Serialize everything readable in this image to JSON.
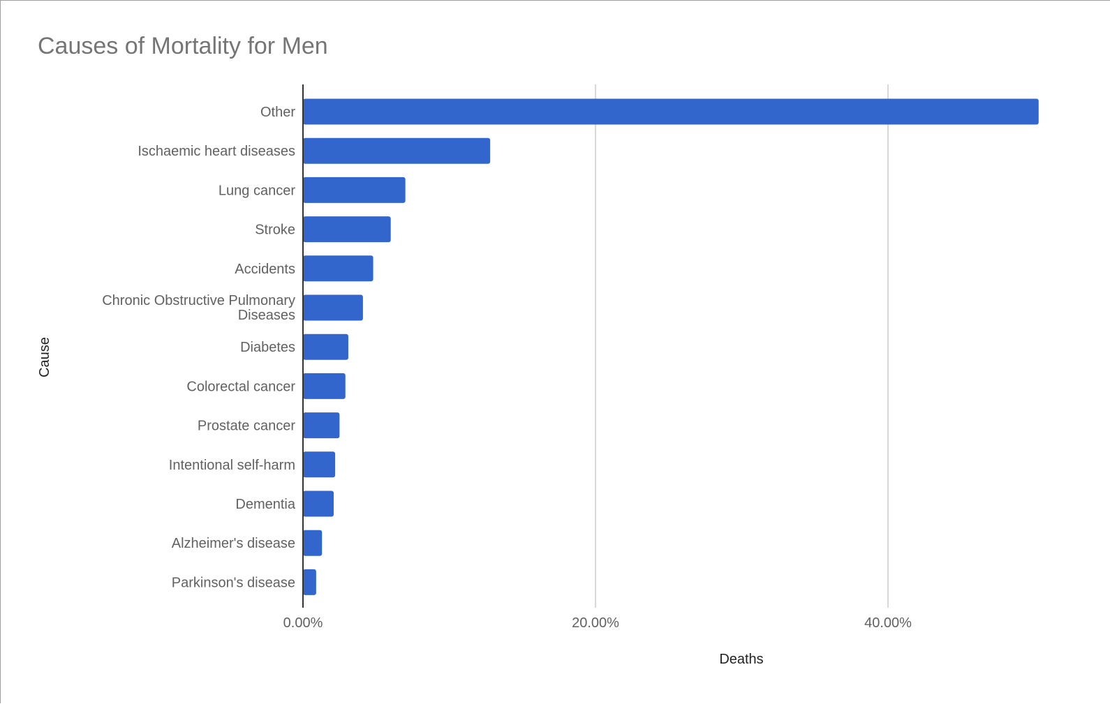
{
  "chart_data": {
    "type": "bar",
    "orientation": "horizontal",
    "title": "Causes of Mortality for Men",
    "xlabel": "Deaths",
    "ylabel": "Cause",
    "x_ticks": [
      "0.00%",
      "20.00%",
      "40.00%"
    ],
    "xlim": [
      0,
      50
    ],
    "grid": true,
    "legend": "none",
    "bar_color": "#3366cc",
    "categories": [
      "Other",
      "Ischaemic heart diseases",
      "Lung cancer",
      "Stroke",
      "Accidents",
      "Chronic Obstructive Pulmonary Diseases",
      "Diabetes",
      "Colorectal cancer",
      "Prostate cancer",
      "Intentional self-harm",
      "Dementia",
      "Alzheimer's disease",
      "Parkinson's disease"
    ],
    "values": [
      50.3,
      12.8,
      7.0,
      6.0,
      4.8,
      4.1,
      3.1,
      2.9,
      2.5,
      2.2,
      2.1,
      1.3,
      0.9
    ]
  }
}
